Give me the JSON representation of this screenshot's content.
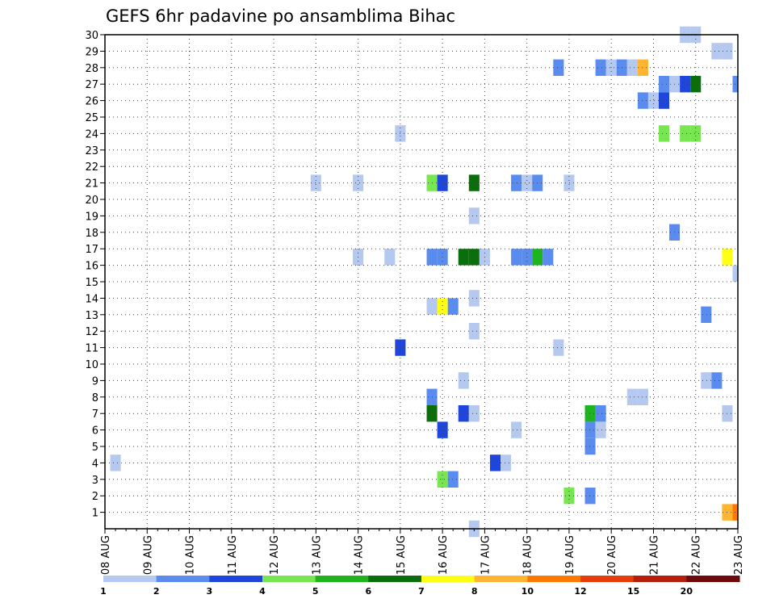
{
  "chart_data": {
    "type": "heatmap",
    "title": "GEFS 6hr padavine po ansamblima Bihac",
    "x_tick_labels": [
      "08 AUG",
      "09 AUG",
      "10 AUG",
      "11 AUG",
      "12 AUG",
      "13 AUG",
      "14 AUG",
      "15 AUG",
      "16 AUG",
      "17 AUG",
      "18 AUG",
      "19 AUG",
      "20 AUG",
      "21 AUG",
      "22 AUG",
      "23 AUG"
    ],
    "x_range_days": [
      0,
      15
    ],
    "y_tick_labels": [
      "1",
      "2",
      "3",
      "4",
      "5",
      "6",
      "7",
      "8",
      "9",
      "10",
      "11",
      "12",
      "13",
      "14",
      "15",
      "16",
      "17",
      "18",
      "19",
      "20",
      "21",
      "22",
      "23",
      "24",
      "25",
      "26",
      "27",
      "28",
      "29",
      "30"
    ],
    "y_range": [
      0,
      30
    ],
    "grid": true,
    "colorbar": {
      "labels": [
        "1",
        "2",
        "3",
        "4",
        "5",
        "6",
        "7",
        "8",
        "10",
        "12",
        "15",
        "20"
      ],
      "colors": [
        "#b4c8f0",
        "#5a8cf0",
        "#1e46dc",
        "#78e650",
        "#1eb41e",
        "#0a6e0a",
        "#ffff14",
        "#ffb432",
        "#ff7800",
        "#e63c0a",
        "#b41e0a",
        "#6e0a0a"
      ]
    },
    "cells_note": "each cell: [day offset from 08 AUG (6-hourly steps), ensemble member, color class index 1-12]",
    "cells": [
      [
        0.25,
        4,
        1
      ],
      [
        5.0,
        21,
        1
      ],
      [
        6.0,
        21,
        1
      ],
      [
        6.0,
        16.5,
        1
      ],
      [
        6.75,
        16.5,
        1
      ],
      [
        7.0,
        24,
        1
      ],
      [
        7.0,
        11,
        3
      ],
      [
        7.75,
        21,
        4
      ],
      [
        8.0,
        21,
        3
      ],
      [
        7.75,
        16.5,
        2
      ],
      [
        8.0,
        16.5,
        2
      ],
      [
        7.75,
        13.5,
        1
      ],
      [
        8.0,
        13.5,
        7
      ],
      [
        8.25,
        13.5,
        2
      ],
      [
        7.75,
        8,
        2
      ],
      [
        7.75,
        7,
        6
      ],
      [
        8.0,
        6,
        3
      ],
      [
        8.0,
        3,
        4
      ],
      [
        8.25,
        3,
        2
      ],
      [
        8.5,
        9,
        1
      ],
      [
        8.5,
        7,
        3
      ],
      [
        8.75,
        7,
        1
      ],
      [
        8.75,
        21,
        6
      ],
      [
        8.75,
        19,
        1
      ],
      [
        8.5,
        16.5,
        6
      ],
      [
        8.75,
        16.5,
        6
      ],
      [
        9.0,
        16.5,
        1
      ],
      [
        8.75,
        14,
        1
      ],
      [
        8.75,
        12,
        1
      ],
      [
        8.75,
        0,
        1
      ],
      [
        9.25,
        4,
        3
      ],
      [
        9.5,
        4,
        1
      ],
      [
        9.75,
        6,
        1
      ],
      [
        9.75,
        21,
        2
      ],
      [
        10.0,
        21,
        1
      ],
      [
        10.25,
        21,
        2
      ],
      [
        9.75,
        16.5,
        2
      ],
      [
        10.0,
        16.5,
        2
      ],
      [
        10.25,
        16.5,
        5
      ],
      [
        10.5,
        16.5,
        2
      ],
      [
        10.75,
        28,
        2
      ],
      [
        10.75,
        11,
        1
      ],
      [
        11.0,
        21,
        1
      ],
      [
        11.0,
        2,
        4
      ],
      [
        11.5,
        7,
        5
      ],
      [
        11.5,
        6,
        2
      ],
      [
        11.5,
        5,
        2
      ],
      [
        11.75,
        7,
        2
      ],
      [
        11.75,
        6,
        1
      ],
      [
        11.5,
        2,
        2
      ],
      [
        11.75,
        28,
        2
      ],
      [
        12.0,
        28,
        1
      ],
      [
        12.25,
        28,
        2
      ],
      [
        12.5,
        28,
        1
      ],
      [
        12.75,
        28,
        8
      ],
      [
        12.5,
        8,
        1
      ],
      [
        12.75,
        8,
        1
      ],
      [
        12.75,
        26,
        2
      ],
      [
        13.0,
        26,
        1
      ],
      [
        13.25,
        26,
        3
      ],
      [
        13.25,
        27,
        2
      ],
      [
        13.5,
        27,
        1
      ],
      [
        13.25,
        24,
        4
      ],
      [
        13.5,
        18,
        2
      ],
      [
        13.75,
        27,
        3
      ],
      [
        14.0,
        27,
        6
      ],
      [
        13.75,
        24,
        4
      ],
      [
        14.0,
        24,
        4
      ],
      [
        13.75,
        30,
        1
      ],
      [
        14.0,
        30,
        1
      ],
      [
        14.25,
        13,
        2
      ],
      [
        14.25,
        9,
        1
      ],
      [
        14.5,
        9,
        2
      ],
      [
        14.5,
        29,
        1
      ],
      [
        14.75,
        29,
        1
      ],
      [
        14.75,
        16.5,
        7
      ],
      [
        14.75,
        7,
        1
      ],
      [
        14.75,
        1,
        8
      ],
      [
        15.0,
        1,
        9
      ],
      [
        15.0,
        27,
        2
      ],
      [
        15.0,
        15.5,
        1
      ]
    ]
  }
}
